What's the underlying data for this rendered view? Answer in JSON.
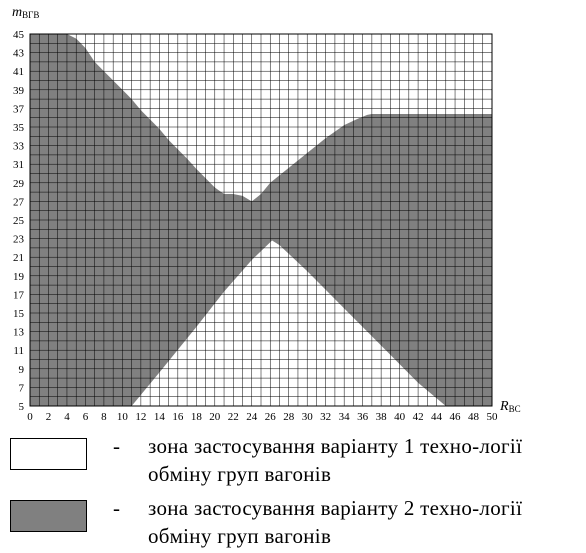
{
  "chart_data": {
    "type": "area",
    "ylabel_main": "m",
    "ylabel_sub": "ВГВ",
    "xlabel_main": "R",
    "xlabel_sub": "ВС",
    "xlim": [
      0,
      50
    ],
    "ylim": [
      5,
      45
    ],
    "x_ticks": [
      0,
      2,
      4,
      6,
      8,
      10,
      12,
      14,
      16,
      18,
      20,
      22,
      24,
      26,
      28,
      30,
      32,
      34,
      36,
      38,
      40,
      42,
      44,
      46,
      48,
      50
    ],
    "y_ticks": [
      5,
      7,
      9,
      11,
      13,
      15,
      17,
      19,
      21,
      23,
      25,
      27,
      29,
      31,
      33,
      35,
      37,
      39,
      41,
      43,
      45
    ],
    "grid": true,
    "series": [
      {
        "zone": 1,
        "color": "#ffffff",
        "regions": [
          {
            "upper_boundary_x": [
              4,
              5,
              6,
              7,
              8,
              9,
              10,
              11,
              12,
              13,
              14,
              15,
              16,
              17,
              18,
              19,
              20,
              21,
              22,
              23,
              24,
              25,
              26
            ],
            "upper_boundary_y": [
              45,
              44.5,
              43.5,
              42,
              41,
              40,
              39,
              38,
              36.8,
              35.8,
              34.8,
              33.6,
              32.6,
              31.6,
              30.5,
              29.5,
              28.5,
              27.8,
              27.8,
              27.6,
              27,
              26,
              25
            ]
          },
          {
            "lower_boundary_x": [
              11,
              14,
              18,
              21,
              24,
              26.2,
              27,
              30,
              34,
              38,
              42,
              45
            ],
            "lower_boundary_y": [
              5,
              8.6,
              13.5,
              17.3,
              20.7,
              22.8,
              22.3,
              19.5,
              15.5,
              11.5,
              7.5,
              5
            ]
          },
          {
            "upper_boundary_x": [
              0,
              3.5
            ],
            "upper_boundary_y": [
              45,
              45
            ]
          }
        ]
      },
      {
        "zone": 2,
        "color": "#808080",
        "upper_boundary_x": [
          0,
          4,
          5,
          6,
          7,
          8,
          9,
          10,
          11,
          12,
          13,
          14,
          15,
          16,
          17,
          18,
          19,
          20,
          21,
          22,
          23,
          24,
          25,
          26,
          28,
          30,
          32,
          34,
          35.5,
          36.5,
          37,
          50
        ],
        "upper_boundary_y": [
          45,
          45,
          44.5,
          43.5,
          42,
          41,
          40,
          39,
          38,
          36.8,
          35.8,
          34.8,
          33.6,
          32.6,
          31.6,
          30.5,
          29.5,
          28.5,
          27.8,
          27.8,
          27.6,
          27,
          27.8,
          29,
          30.6,
          32.2,
          33.8,
          35.2,
          35.9,
          36.3,
          36.4,
          36.4
        ],
        "lower_boundary_x": [
          0,
          11,
          14,
          18,
          21,
          24,
          26.2,
          27,
          30,
          34,
          38,
          42,
          45,
          50
        ],
        "lower_boundary_y": [
          5,
          5,
          8.6,
          13.5,
          17.3,
          20.7,
          22.8,
          22.3,
          19.5,
          15.5,
          11.5,
          7.5,
          5,
          5
        ]
      }
    ]
  },
  "legend": {
    "items": [
      {
        "swatch_color": "#ffffff",
        "dash": "-",
        "text": "зона застосування варіанту 1 техно-логії обміну груп вагонів"
      },
      {
        "swatch_color": "#808080",
        "dash": "-",
        "text": "зона застосування варіанту 2 техно-логії обміну груп вагонів"
      }
    ]
  }
}
